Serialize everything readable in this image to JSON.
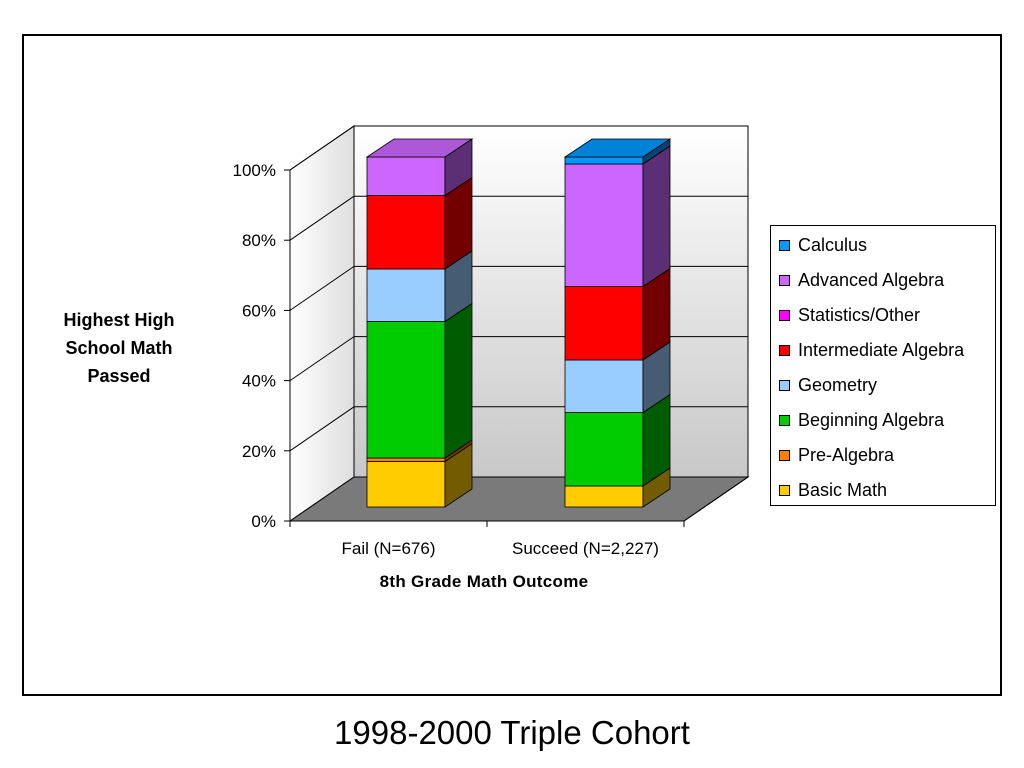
{
  "caption": "1998-2000 Triple Cohort",
  "chart_data": {
    "type": "bar",
    "stacked": true,
    "normalized_percent": true,
    "three_d": true,
    "categories": [
      "Fail (N=676)",
      "Succeed (N=2,227)"
    ],
    "series": [
      {
        "name": "Basic Math",
        "color": "#ffcc00",
        "values": [
          13,
          6
        ]
      },
      {
        "name": "Pre-Algebra",
        "color": "#ff8000",
        "values": [
          1,
          0
        ]
      },
      {
        "name": "Beginning Algebra",
        "color": "#00cc00",
        "values": [
          39,
          21
        ]
      },
      {
        "name": "Geometry",
        "color": "#99ccff",
        "values": [
          15,
          15
        ]
      },
      {
        "name": "Intermediate Algebra",
        "color": "#ff0000",
        "values": [
          21,
          21
        ]
      },
      {
        "name": "Statistics/Other",
        "color": "#ff00ff",
        "values": [
          0,
          0
        ]
      },
      {
        "name": "Advanced Algebra",
        "color": "#cc66ff",
        "values": [
          11,
          35
        ]
      },
      {
        "name": "Calculus",
        "color": "#0099ff",
        "values": [
          0,
          2
        ]
      }
    ],
    "ylabel": "Highest High School Math Passed",
    "xlabel": "8th Grade Math Outcome",
    "ylim": [
      0,
      100
    ],
    "yticks": [
      "0%",
      "20%",
      "40%",
      "60%",
      "80%",
      "100%"
    ],
    "grid": true,
    "legend_position": "right"
  }
}
